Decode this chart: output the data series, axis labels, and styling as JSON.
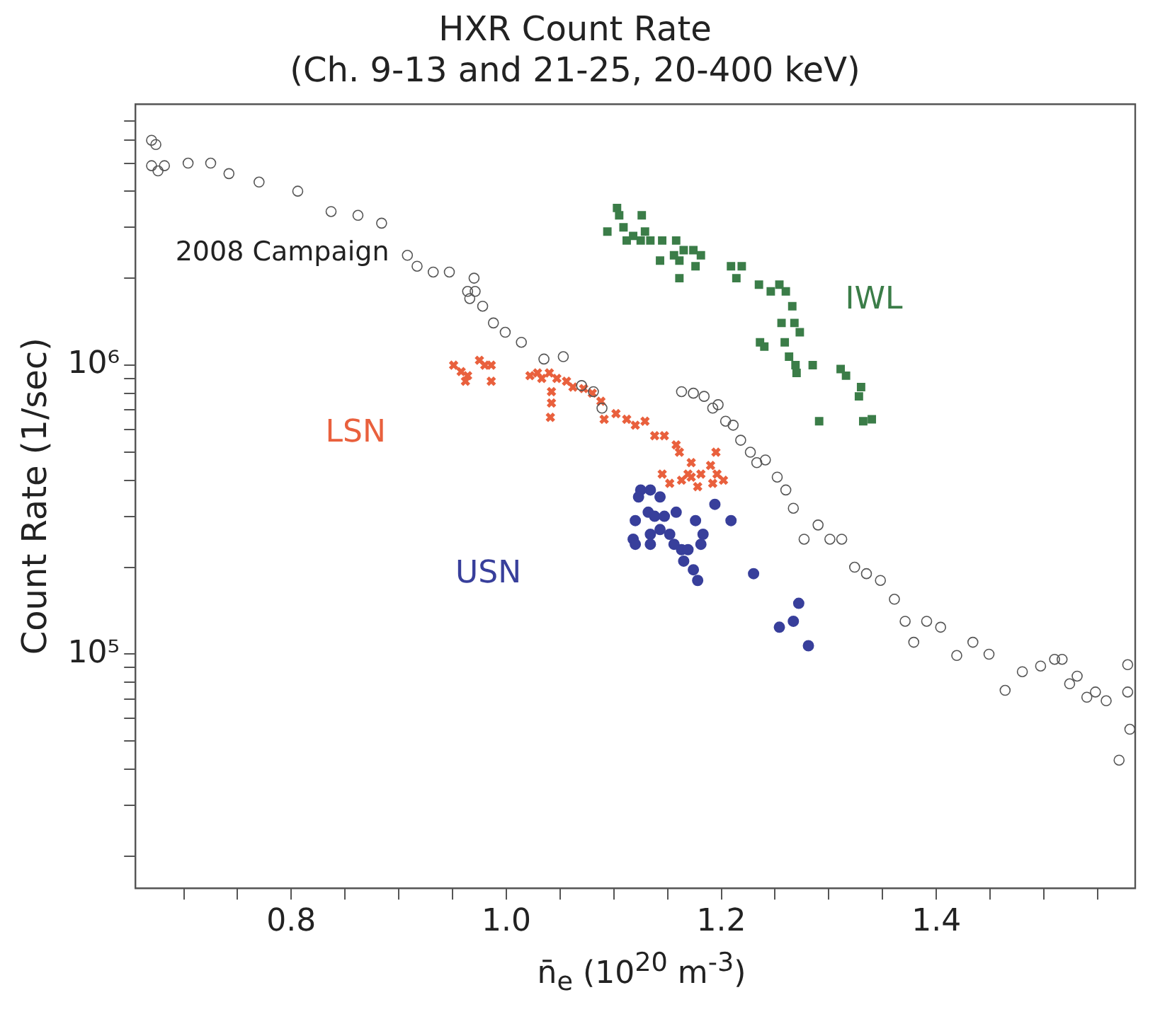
{
  "chart_data": {
    "type": "scatter",
    "title": "HXR Count Rate",
    "subtitle": "(Ch. 9-13 and 21-25, 20-400 keV)",
    "xlabel": "n̄$_{e}$ (10$^{20}$ m$^{-3}$)",
    "ylabel": "Count Rate (1/sec)",
    "log": "y",
    "grid": false,
    "legend": false,
    "xlim": [
      0.655,
      1.585
    ],
    "ylim": [
      15500,
      8000000
    ],
    "xticks": [
      {
        "value": 0.7,
        "label": null
      },
      {
        "value": 0.75,
        "label": null
      },
      {
        "value": 0.8,
        "label": "0.8"
      },
      {
        "value": 0.85,
        "label": null
      },
      {
        "value": 0.9,
        "label": null
      },
      {
        "value": 0.95,
        "label": null
      },
      {
        "value": 1.0,
        "label": "1.0"
      },
      {
        "value": 1.05,
        "label": null
      },
      {
        "value": 1.1,
        "label": null
      },
      {
        "value": 1.15,
        "label": null
      },
      {
        "value": 1.2,
        "label": "1.2"
      },
      {
        "value": 1.25,
        "label": null
      },
      {
        "value": 1.3,
        "label": null
      },
      {
        "value": 1.35,
        "label": null
      },
      {
        "value": 1.4,
        "label": "1.4"
      },
      {
        "value": 1.45,
        "label": null
      },
      {
        "value": 1.5,
        "label": null
      },
      {
        "value": 1.55,
        "label": null
      }
    ],
    "yticks": [
      {
        "value": 20000,
        "label": null
      },
      {
        "value": 30000,
        "label": null
      },
      {
        "value": 40000,
        "label": null
      },
      {
        "value": 50000,
        "label": null
      },
      {
        "value": 60000,
        "label": null
      },
      {
        "value": 70000,
        "label": null
      },
      {
        "value": 80000,
        "label": null
      },
      {
        "value": 90000,
        "label": null
      },
      {
        "value": 100000,
        "label": "10⁵"
      },
      {
        "value": 200000,
        "label": null
      },
      {
        "value": 300000,
        "label": null
      },
      {
        "value": 400000,
        "label": null
      },
      {
        "value": 500000,
        "label": null
      },
      {
        "value": 600000,
        "label": null
      },
      {
        "value": 700000,
        "label": null
      },
      {
        "value": 800000,
        "label": null
      },
      {
        "value": 900000,
        "label": null
      },
      {
        "value": 1000000,
        "label": "10⁶"
      },
      {
        "value": 2000000,
        "label": null
      },
      {
        "value": 3000000,
        "label": null
      },
      {
        "value": 4000000,
        "label": null
      },
      {
        "value": 5000000,
        "label": null
      },
      {
        "value": 6000000,
        "label": null
      },
      {
        "value": 7000000,
        "label": null
      }
    ],
    "series": [
      {
        "name": "2008 Campaign",
        "color": "#555555",
        "marker": "circle",
        "x": [
          0.67,
          0.674,
          0.67,
          0.676,
          0.682,
          0.704,
          0.725,
          0.742,
          0.77,
          0.806,
          0.837,
          0.862,
          0.884,
          0.908,
          0.917,
          0.932,
          0.947,
          0.97,
          0.964,
          0.971,
          0.966,
          0.978,
          0.988,
          0.999,
          1.014,
          1.035,
          1.053,
          1.07,
          1.081,
          1.089,
          1.163,
          1.174,
          1.184,
          1.192,
          1.197,
          1.204,
          1.211,
          1.218,
          1.227,
          1.233,
          1.241,
          1.252,
          1.26,
          1.267,
          1.29,
          1.277,
          1.301,
          1.312,
          1.324,
          1.335,
          1.348,
          1.361,
          1.371,
          1.391,
          1.404,
          1.379,
          1.419,
          1.434,
          1.449,
          1.464,
          1.48,
          1.497,
          1.51,
          1.517,
          1.531,
          1.524,
          1.54,
          1.548,
          1.558,
          1.57,
          1.578,
          1.578,
          1.58
        ],
        "values": [
          6000000,
          5800000,
          4900000,
          4700000,
          4900000,
          5000000,
          5000000,
          4600000,
          4300000,
          4000000,
          3400000,
          3300000,
          3100000,
          2400000,
          2200000,
          2100000,
          2100000,
          2000000,
          1800000,
          1800000,
          1700000,
          1600000,
          1400000,
          1300000,
          1200000,
          1050000,
          1070000,
          850000,
          810000,
          710000,
          810000,
          800000,
          780000,
          710000,
          730000,
          640000,
          620000,
          550000,
          500000,
          460000,
          470000,
          410000,
          370000,
          320000,
          280000,
          250000,
          250000,
          250000,
          200000,
          190000,
          180000,
          155000,
          130000,
          130000,
          124000,
          110000,
          99000,
          110000,
          100000,
          75000,
          87000,
          91000,
          96000,
          96000,
          84000,
          79000,
          71000,
          74000,
          69000,
          43000,
          92000,
          74000,
          55000
        ]
      },
      {
        "name": "IWL",
        "color": "#3b7d48",
        "marker": "square",
        "x": [
          1.103,
          1.105,
          1.126,
          1.094,
          1.109,
          1.118,
          1.129,
          1.112,
          1.125,
          1.134,
          1.145,
          1.158,
          1.143,
          1.156,
          1.165,
          1.174,
          1.181,
          1.161,
          1.176,
          1.161,
          1.209,
          1.219,
          1.214,
          1.235,
          1.246,
          1.254,
          1.26,
          1.266,
          1.256,
          1.268,
          1.273,
          1.236,
          1.24,
          1.259,
          1.263,
          1.269,
          1.27,
          1.285,
          1.311,
          1.316,
          1.33,
          1.328,
          1.291,
          1.332,
          1.34
        ],
        "values": [
          3500000,
          3300000,
          3300000,
          2900000,
          3000000,
          2800000,
          2900000,
          2700000,
          2700000,
          2700000,
          2700000,
          2700000,
          2300000,
          2400000,
          2500000,
          2500000,
          2400000,
          2300000,
          2200000,
          2000000,
          2200000,
          2200000,
          2000000,
          1900000,
          1800000,
          1900000,
          1800000,
          1600000,
          1400000,
          1400000,
          1300000,
          1200000,
          1160000,
          1200000,
          1070000,
          1000000,
          940000,
          1000000,
          970000,
          920000,
          840000,
          780000,
          640000,
          640000,
          650000
        ]
      },
      {
        "name": "LSN",
        "color": "#e9603d",
        "marker": "cross",
        "x": [
          0.951,
          0.958,
          0.964,
          0.975,
          0.98,
          0.986,
          0.962,
          0.986,
          1.022,
          1.029,
          1.033,
          1.04,
          1.047,
          1.042,
          1.042,
          1.041,
          1.056,
          1.062,
          1.072,
          1.08,
          1.088,
          1.091,
          1.102,
          1.112,
          1.12,
          1.129,
          1.138,
          1.147,
          1.158,
          1.161,
          1.172,
          1.195,
          1.145,
          1.152,
          1.163,
          1.172,
          1.181,
          1.19,
          1.196,
          1.192,
          1.202,
          1.178,
          1.169
        ],
        "values": [
          1000000,
          950000,
          920000,
          1040000,
          1000000,
          1000000,
          880000,
          880000,
          920000,
          940000,
          900000,
          940000,
          900000,
          810000,
          740000,
          660000,
          880000,
          840000,
          830000,
          800000,
          750000,
          650000,
          680000,
          650000,
          620000,
          640000,
          570000,
          570000,
          530000,
          500000,
          460000,
          500000,
          420000,
          390000,
          400000,
          410000,
          420000,
          450000,
          420000,
          390000,
          400000,
          380000,
          420000
        ]
      },
      {
        "name": "USN",
        "color": "#383f9b",
        "marker": "circle",
        "x": [
          1.125,
          1.134,
          1.143,
          1.12,
          1.132,
          1.138,
          1.147,
          1.158,
          1.176,
          1.118,
          1.134,
          1.143,
          1.152,
          1.156,
          1.12,
          1.134,
          1.163,
          1.169,
          1.183,
          1.181,
          1.165,
          1.174,
          1.178,
          1.194,
          1.209,
          1.23,
          1.272,
          1.254,
          1.267,
          1.281,
          1.123
        ],
        "values": [
          370000,
          370000,
          350000,
          290000,
          310000,
          300000,
          300000,
          310000,
          290000,
          250000,
          260000,
          270000,
          260000,
          240000,
          240000,
          240000,
          230000,
          230000,
          260000,
          240000,
          210000,
          196000,
          180000,
          330000,
          290000,
          190000,
          150000,
          124000,
          130000,
          107000,
          350000
        ]
      }
    ]
  }
}
